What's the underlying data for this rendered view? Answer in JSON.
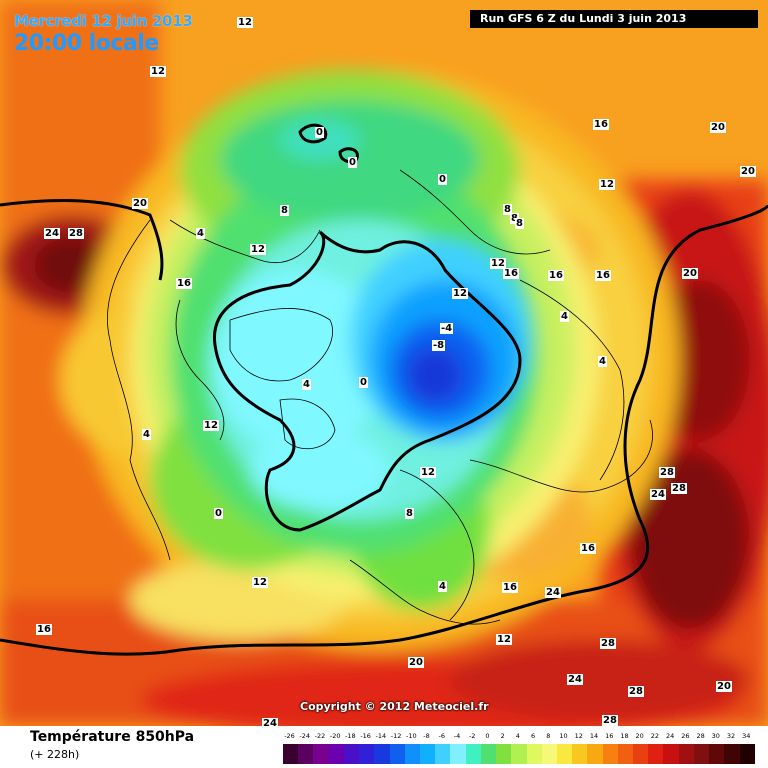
{
  "header": {
    "date": "Mercredi 12 juin 2013",
    "time": "20:00 locale",
    "run": "Run GFS 6 Z du Lundi 3 juin 2013"
  },
  "copyright": "Copyright © 2012 Meteociel.fr",
  "footer": {
    "title": "Température 850hPa",
    "subtitle": "(+ 228h)"
  },
  "scale": {
    "labels": [
      "-26",
      "-24",
      "-22",
      "-20",
      "-18",
      "-16",
      "-14",
      "-12",
      "-10",
      "-8",
      "-6",
      "-4",
      "-2",
      "0",
      "2",
      "4",
      "6",
      "8",
      "10",
      "12",
      "14",
      "16",
      "18",
      "20",
      "22",
      "24",
      "26",
      "28",
      "30",
      "32",
      "34"
    ],
    "colors": [
      "#3a0030",
      "#5a0060",
      "#7a0090",
      "#6a00b0",
      "#4a10c8",
      "#3020d8",
      "#1838e0",
      "#1060f0",
      "#1090ff",
      "#10b0ff",
      "#40d0ff",
      "#80f0ff",
      "#40f0c0",
      "#50e070",
      "#80e040",
      "#b0f050",
      "#e0f860",
      "#f8f878",
      "#f8e840",
      "#f8c820",
      "#f8a810",
      "#f88010",
      "#f06010",
      "#e84010",
      "#e02010",
      "#c81010",
      "#a01010",
      "#801010",
      "#600808",
      "#400404",
      "#200000"
    ]
  },
  "contour_labels": [
    {
      "text": "12"
    },
    {
      "text": "12"
    },
    {
      "text": "12"
    },
    {
      "text": "20"
    },
    {
      "text": "24"
    },
    {
      "text": "28"
    },
    {
      "text": "16"
    },
    {
      "text": "4"
    },
    {
      "text": "8"
    },
    {
      "text": "0"
    },
    {
      "text": "0"
    },
    {
      "text": "0"
    },
    {
      "text": "8"
    },
    {
      "text": "8"
    },
    {
      "text": "8"
    },
    {
      "text": "16"
    },
    {
      "text": "12"
    },
    {
      "text": "20"
    },
    {
      "text": "20"
    },
    {
      "text": "20"
    },
    {
      "text": "12"
    },
    {
      "text": "16"
    },
    {
      "text": "16"
    },
    {
      "text": "16"
    },
    {
      "text": "12"
    },
    {
      "text": "12"
    },
    {
      "text": "-4"
    },
    {
      "text": "-8"
    },
    {
      "text": "4"
    },
    {
      "text": "4"
    },
    {
      "text": "4"
    },
    {
      "text": "0"
    },
    {
      "text": "4"
    },
    {
      "text": "12"
    },
    {
      "text": "0"
    },
    {
      "text": "12"
    },
    {
      "text": "8"
    },
    {
      "text": "28"
    },
    {
      "text": "24"
    },
    {
      "text": "28"
    },
    {
      "text": "16"
    },
    {
      "text": "16"
    },
    {
      "text": "24"
    },
    {
      "text": "4"
    },
    {
      "text": "12"
    },
    {
      "text": "16"
    },
    {
      "text": "28"
    },
    {
      "text": "20"
    },
    {
      "text": "24"
    },
    {
      "text": "28"
    },
    {
      "text": "20"
    },
    {
      "text": "28"
    },
    {
      "text": "24"
    }
  ]
}
